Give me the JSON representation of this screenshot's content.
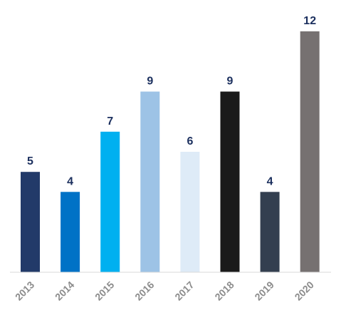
{
  "chart_data": {
    "type": "bar",
    "title": "",
    "xlabel": "",
    "ylabel": "",
    "categories": [
      "2013",
      "2014",
      "2015",
      "2016",
      "2017",
      "2018",
      "2019",
      "2020"
    ],
    "values": [
      5,
      4,
      7,
      9,
      6,
      9,
      4,
      12
    ],
    "colors": [
      "#223a69",
      "#0072c6",
      "#00b0f0",
      "#9dc3e6",
      "#deebf7",
      "#1a1a1a",
      "#333f50",
      "#767171"
    ],
    "ylim": [
      0,
      12
    ],
    "grid": false,
    "legend": "none",
    "data_labels": true
  }
}
